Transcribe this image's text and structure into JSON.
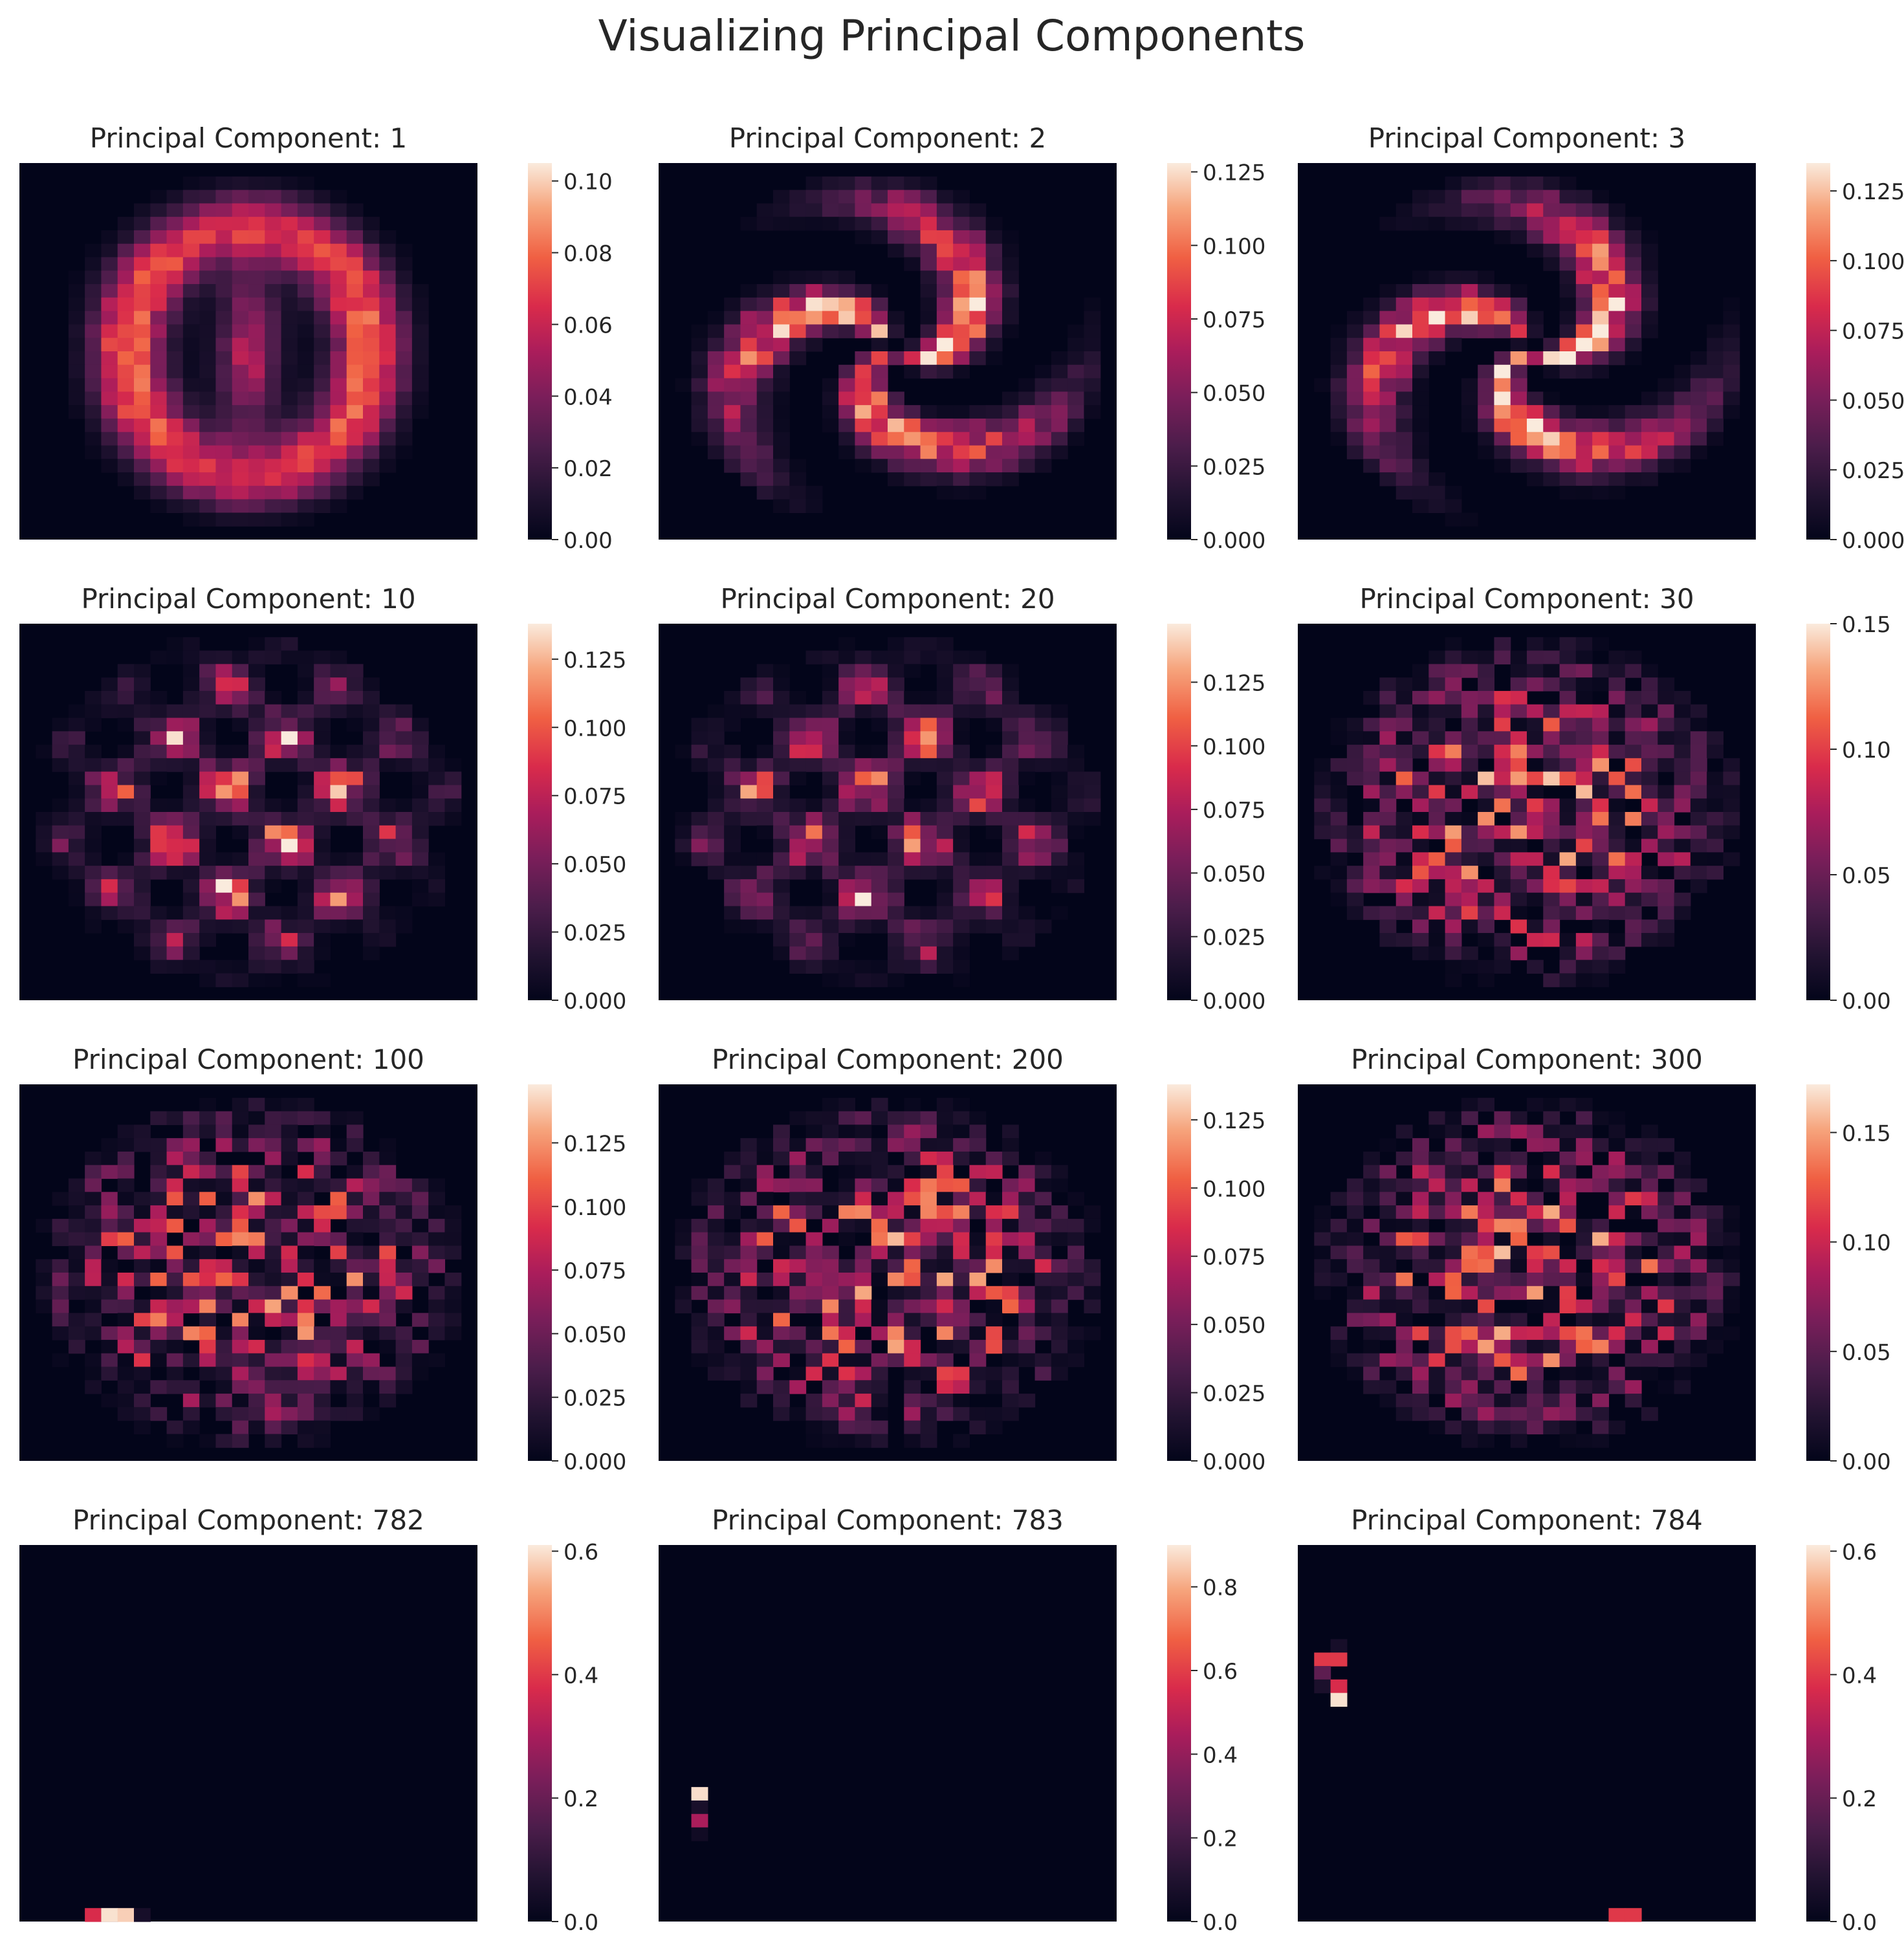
{
  "figure": {
    "title": "Visualizing Principal Components"
  },
  "chart_data": [
    {
      "type": "heatmap",
      "title": "Principal Component: 1",
      "pattern": "ring",
      "grid": [
        28,
        28
      ],
      "vmin": 0,
      "vmax": 0.105,
      "colorbar_ticks": [
        "0.00",
        "0.02",
        "0.04",
        "0.06",
        "0.08",
        "0.10"
      ],
      "colorbar_tick_values": [
        0,
        0.02,
        0.04,
        0.06,
        0.08,
        0.1
      ]
    },
    {
      "type": "heatmap",
      "title": "Principal Component: 2",
      "pattern": "swirl",
      "grid": [
        28,
        28
      ],
      "vmin": 0,
      "vmax": 0.128,
      "colorbar_ticks": [
        "0.000",
        "0.025",
        "0.050",
        "0.075",
        "0.100",
        "0.125"
      ],
      "colorbar_tick_values": [
        0,
        0.025,
        0.05,
        0.075,
        0.1,
        0.125
      ]
    },
    {
      "type": "heatmap",
      "title": "Principal Component: 3",
      "pattern": "swirl",
      "grid": [
        28,
        28
      ],
      "vmin": 0,
      "vmax": 0.135,
      "colorbar_ticks": [
        "0.000",
        "0.025",
        "0.050",
        "0.075",
        "0.100",
        "0.125"
      ],
      "colorbar_tick_values": [
        0,
        0.025,
        0.05,
        0.075,
        0.1,
        0.125
      ]
    },
    {
      "type": "heatmap",
      "title": "Principal Component: 10",
      "pattern": "blobs",
      "grid": [
        28,
        28
      ],
      "vmin": 0,
      "vmax": 0.138,
      "colorbar_ticks": [
        "0.000",
        "0.025",
        "0.050",
        "0.075",
        "0.100",
        "0.125"
      ],
      "colorbar_tick_values": [
        0,
        0.025,
        0.05,
        0.075,
        0.1,
        0.125
      ]
    },
    {
      "type": "heatmap",
      "title": "Principal Component: 20",
      "pattern": "blobs",
      "grid": [
        28,
        28
      ],
      "vmin": 0,
      "vmax": 0.148,
      "colorbar_ticks": [
        "0.000",
        "0.025",
        "0.050",
        "0.075",
        "0.100",
        "0.125"
      ],
      "colorbar_tick_values": [
        0,
        0.025,
        0.05,
        0.075,
        0.1,
        0.125
      ]
    },
    {
      "type": "heatmap",
      "title": "Principal Component: 30",
      "pattern": "noise",
      "grid": [
        28,
        28
      ],
      "vmin": 0,
      "vmax": 0.15,
      "colorbar_ticks": [
        "0.00",
        "0.05",
        "0.10",
        "0.15"
      ],
      "colorbar_tick_values": [
        0,
        0.05,
        0.1,
        0.15
      ]
    },
    {
      "type": "heatmap",
      "title": "Principal Component: 100",
      "pattern": "noise",
      "grid": [
        28,
        28
      ],
      "vmin": 0,
      "vmax": 0.148,
      "colorbar_ticks": [
        "0.000",
        "0.025",
        "0.050",
        "0.075",
        "0.100",
        "0.125"
      ],
      "colorbar_tick_values": [
        0,
        0.025,
        0.05,
        0.075,
        0.1,
        0.125
      ]
    },
    {
      "type": "heatmap",
      "title": "Principal Component: 200",
      "pattern": "noise",
      "grid": [
        28,
        28
      ],
      "vmin": 0,
      "vmax": 0.138,
      "colorbar_ticks": [
        "0.000",
        "0.025",
        "0.050",
        "0.075",
        "0.100",
        "0.125"
      ],
      "colorbar_tick_values": [
        0,
        0.025,
        0.05,
        0.075,
        0.1,
        0.125
      ]
    },
    {
      "type": "heatmap",
      "title": "Principal Component: 300",
      "pattern": "noise",
      "grid": [
        28,
        28
      ],
      "vmin": 0,
      "vmax": 0.172,
      "colorbar_ticks": [
        "0.00",
        "0.05",
        "0.10",
        "0.15"
      ],
      "colorbar_tick_values": [
        0,
        0.05,
        0.1,
        0.15
      ]
    },
    {
      "type": "heatmap",
      "title": "Principal Component: 782",
      "pattern": "sparse",
      "grid": [
        28,
        28
      ],
      "vmin": 0,
      "vmax": 0.61,
      "colorbar_ticks": [
        "0.0",
        "0.2",
        "0.4",
        "0.6"
      ],
      "colorbar_tick_values": [
        0,
        0.2,
        0.4,
        0.6
      ],
      "sparse_cells": [
        [
          27,
          4,
          0.38
        ],
        [
          27,
          5,
          0.12
        ],
        [
          28,
          5,
          0.6
        ],
        [
          28,
          6,
          0.58
        ],
        [
          28,
          7,
          0.05
        ]
      ]
    },
    {
      "type": "heatmap",
      "title": "Principal Component: 783",
      "pattern": "sparse",
      "grid": [
        28,
        28
      ],
      "vmin": 0,
      "vmax": 0.9,
      "colorbar_ticks": [
        "0.0",
        "0.2",
        "0.4",
        "0.6",
        "0.8"
      ],
      "colorbar_tick_values": [
        0,
        0.2,
        0.4,
        0.6,
        0.8
      ],
      "sparse_cells": [
        [
          18,
          2,
          0.88
        ],
        [
          19,
          2,
          0.08
        ],
        [
          20,
          2,
          0.45
        ],
        [
          21,
          2,
          0.05
        ]
      ]
    },
    {
      "type": "heatmap",
      "title": "Principal Component: 784",
      "pattern": "sparse",
      "grid": [
        28,
        28
      ],
      "vmin": 0,
      "vmax": 0.61,
      "colorbar_ticks": [
        "0.0",
        "0.2",
        "0.4",
        "0.6"
      ],
      "colorbar_tick_values": [
        0,
        0.2,
        0.4,
        0.6
      ],
      "sparse_cells": [
        [
          7,
          2,
          0.05
        ],
        [
          8,
          1,
          0.4
        ],
        [
          8,
          2,
          0.4
        ],
        [
          9,
          1,
          0.18
        ],
        [
          10,
          1,
          0.06
        ],
        [
          10,
          2,
          0.38
        ],
        [
          11,
          2,
          0.6
        ],
        [
          28,
          19,
          0.4
        ],
        [
          28,
          20,
          0.4
        ]
      ]
    }
  ]
}
